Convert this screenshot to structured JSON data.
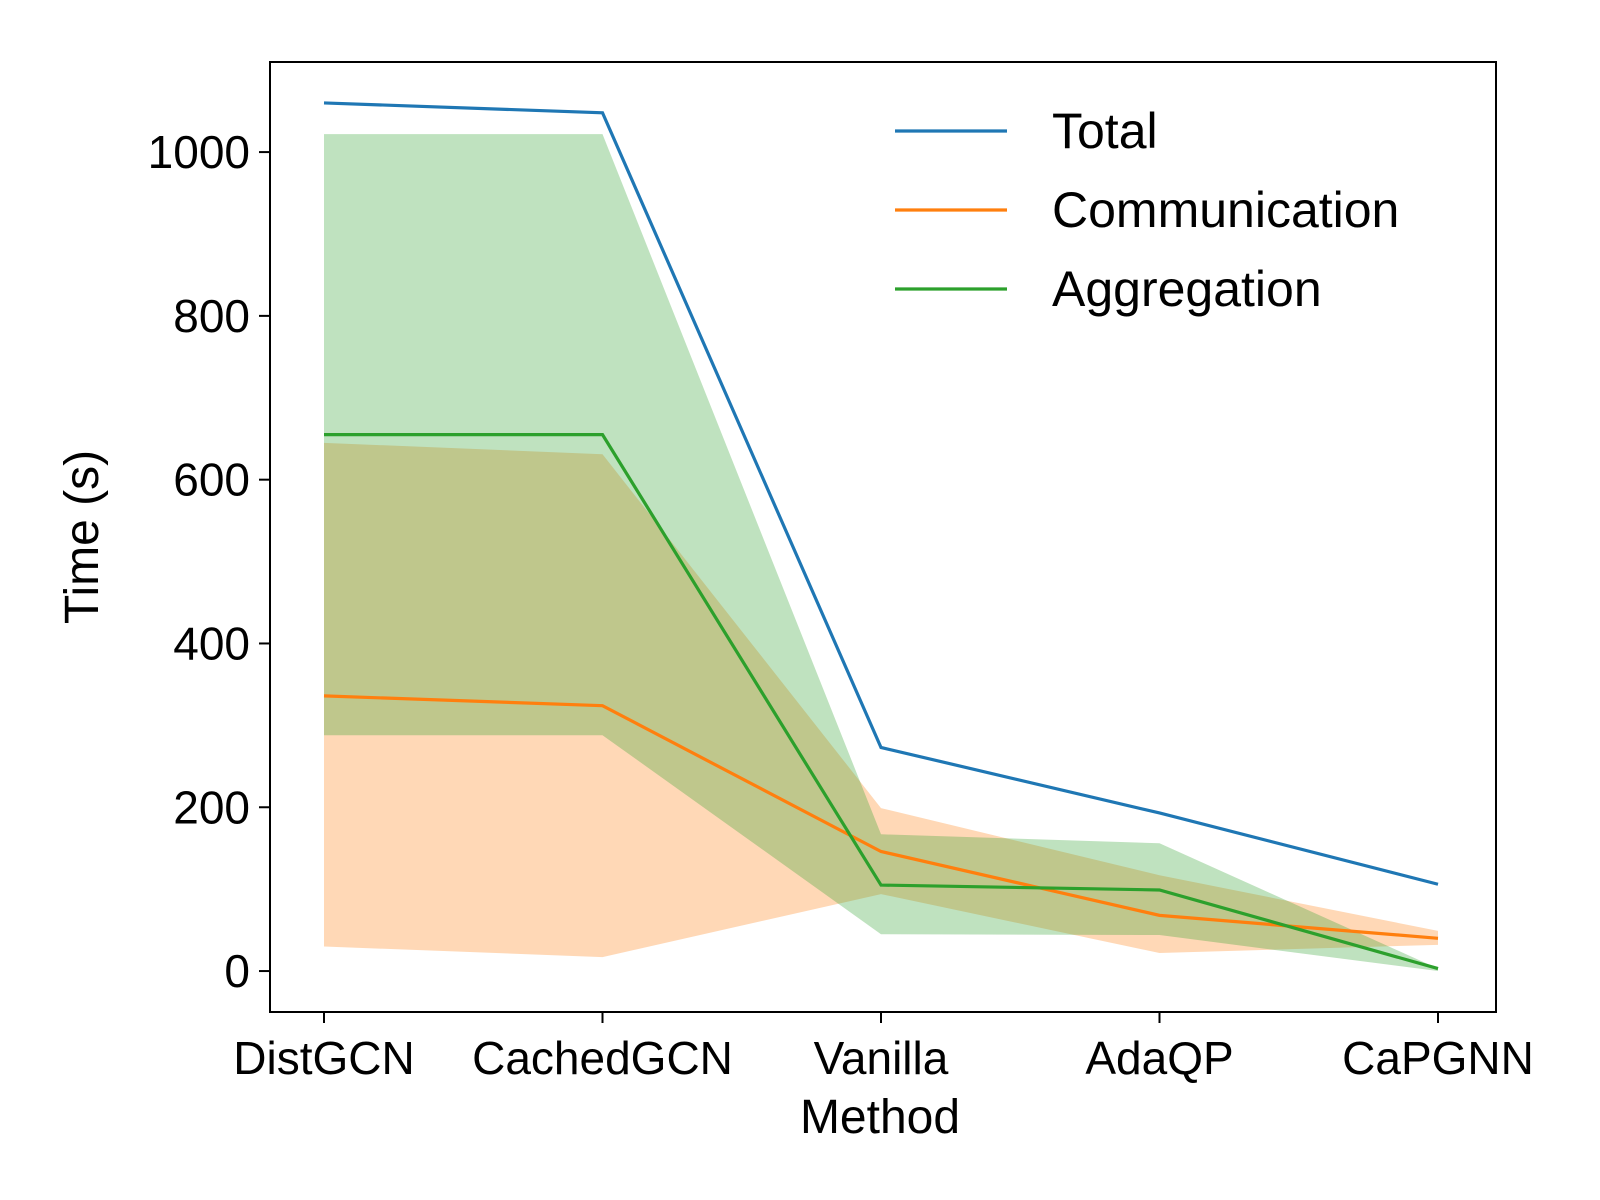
{
  "chart_data": {
    "type": "line",
    "title": "",
    "xlabel": "Method",
    "ylabel": "Time (s)",
    "categories": [
      "DistGCN",
      "CachedGCN",
      "Vanilla",
      "AdaQP",
      "CaPGNN"
    ],
    "ylim": [
      -50,
      1110
    ],
    "yticks": [
      0,
      200,
      400,
      600,
      800,
      1000
    ],
    "grid": false,
    "legend_position": "top-right",
    "series": [
      {
        "name": "Total",
        "color": "#1f77b4",
        "values": [
          1060,
          1048,
          273,
          193,
          106
        ]
      },
      {
        "name": "Communication",
        "color": "#ff7f0e",
        "values": [
          336,
          324,
          146,
          68,
          40
        ],
        "band": {
          "lower": [
            30,
            17,
            94,
            22,
            32
          ],
          "upper": [
            645,
            631,
            199,
            117,
            49
          ],
          "color": "#ffbe86",
          "opacity": 0.6
        }
      },
      {
        "name": "Aggregation",
        "color": "#2ca02c",
        "values": [
          655,
          655,
          105,
          99,
          3
        ],
        "band": {
          "lower": [
            288,
            288,
            45,
            44,
            0
          ],
          "upper": [
            1022,
            1022,
            167,
            156,
            3
          ],
          "color": "#2ca02c",
          "opacity": 0.3
        }
      }
    ]
  }
}
